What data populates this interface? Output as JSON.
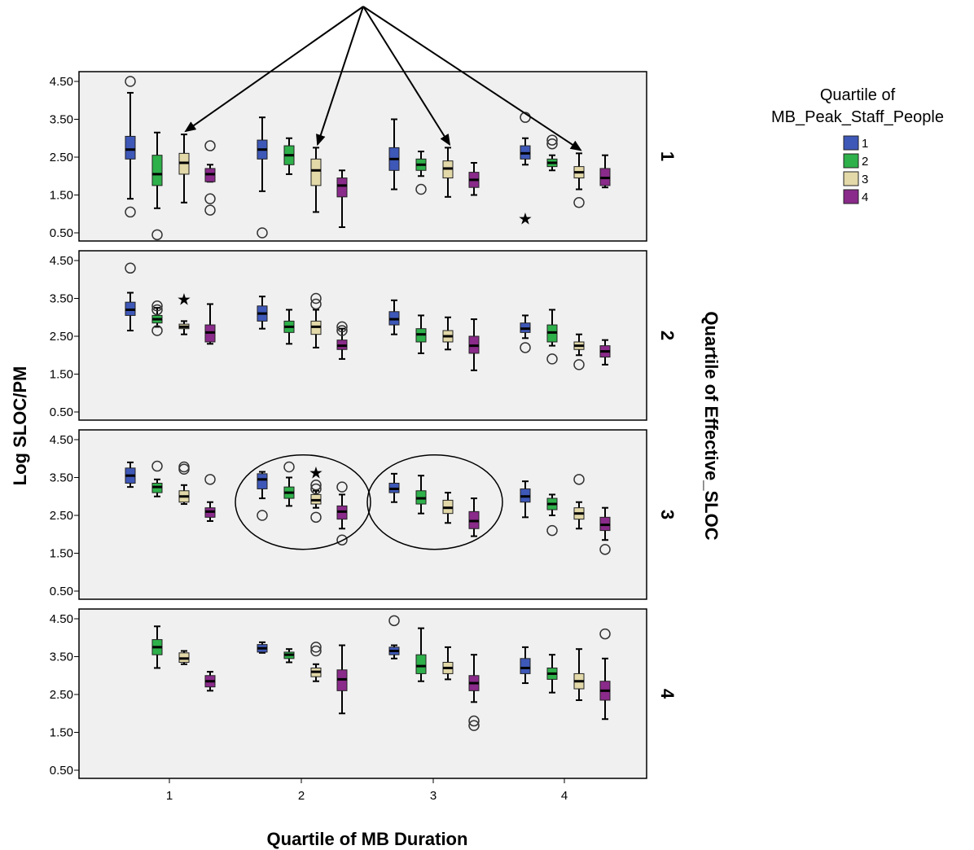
{
  "chart_data": {
    "type": "boxplot",
    "xlabel": "Quartile of MB Duration",
    "ylabel": "Log SLOC/PM",
    "panel_axis_label": "Quartile of Effective_SLOC",
    "legend_title_lines": [
      "Quartile of",
      "MB_Peak_Staff_People"
    ],
    "x_categories": [
      "1",
      "2",
      "3",
      "4"
    ],
    "y_ticks": [
      "4.50",
      "3.50",
      "2.50",
      "1.50",
      "0.50"
    ],
    "ylim": [
      0.5,
      4.5
    ],
    "legend_placement": "top-right",
    "series": [
      {
        "name": "1",
        "color": "#3e58b8"
      },
      {
        "name": "2",
        "color": "#2eb04a"
      },
      {
        "name": "3",
        "color": "#e2d8a8"
      },
      {
        "name": "4",
        "color": "#8a2a8a"
      }
    ],
    "panels": [
      {
        "label": "1",
        "boxes": [
          {
            "x": 1,
            "s": 1,
            "wlo": 1.4,
            "q1": 2.45,
            "med": 2.7,
            "q3": 3.05,
            "whi": 4.2,
            "out": [
              4.5,
              1.05
            ]
          },
          {
            "x": 1,
            "s": 2,
            "wlo": 1.15,
            "q1": 1.75,
            "med": 2.05,
            "q3": 2.55,
            "whi": 3.15,
            "out": [
              0.45
            ]
          },
          {
            "x": 1,
            "s": 3,
            "wlo": 1.3,
            "q1": 2.05,
            "med": 2.35,
            "q3": 2.6,
            "whi": 3.1,
            "out": []
          },
          {
            "x": 1,
            "s": 4,
            "wlo": 1.85,
            "q1": 1.85,
            "med": 2.05,
            "q3": 2.2,
            "whi": 2.3,
            "out": [
              2.8,
              1.4,
              1.1
            ]
          },
          {
            "x": 2,
            "s": 1,
            "wlo": 1.6,
            "q1": 2.45,
            "med": 2.7,
            "q3": 2.95,
            "whi": 3.55,
            "out": [
              0.5
            ]
          },
          {
            "x": 2,
            "s": 2,
            "wlo": 2.05,
            "q1": 2.3,
            "med": 2.55,
            "q3": 2.8,
            "whi": 3.0,
            "out": []
          },
          {
            "x": 2,
            "s": 3,
            "wlo": 1.05,
            "q1": 1.75,
            "med": 2.15,
            "q3": 2.45,
            "whi": 2.75,
            "out": []
          },
          {
            "x": 2,
            "s": 4,
            "wlo": 0.65,
            "q1": 1.45,
            "med": 1.75,
            "q3": 1.95,
            "whi": 2.15,
            "out": []
          },
          {
            "x": 3,
            "s": 1,
            "wlo": 1.65,
            "q1": 2.15,
            "med": 2.45,
            "q3": 2.75,
            "whi": 3.5,
            "out": []
          },
          {
            "x": 3,
            "s": 2,
            "wlo": 2.0,
            "q1": 2.15,
            "med": 2.3,
            "q3": 2.45,
            "whi": 2.65,
            "out": [
              1.65
            ]
          },
          {
            "x": 3,
            "s": 3,
            "wlo": 1.45,
            "q1": 1.95,
            "med": 2.2,
            "q3": 2.4,
            "whi": 2.75,
            "out": []
          },
          {
            "x": 3,
            "s": 4,
            "wlo": 1.5,
            "q1": 1.7,
            "med": 1.9,
            "q3": 2.1,
            "whi": 2.35,
            "out": []
          },
          {
            "x": 4,
            "s": 1,
            "wlo": 2.3,
            "q1": 2.45,
            "med": 2.6,
            "q3": 2.8,
            "whi": 3.0,
            "out": [
              3.55
            ],
            "ext": [
              0.9
            ]
          },
          {
            "x": 4,
            "s": 2,
            "wlo": 2.15,
            "q1": 2.25,
            "med": 2.35,
            "q3": 2.45,
            "whi": 2.55,
            "out": [
              2.95,
              2.85
            ]
          },
          {
            "x": 4,
            "s": 3,
            "wlo": 1.65,
            "q1": 1.95,
            "med": 2.1,
            "q3": 2.25,
            "whi": 2.6,
            "out": [
              1.3
            ]
          },
          {
            "x": 4,
            "s": 4,
            "wlo": 1.7,
            "q1": 1.75,
            "med": 1.95,
            "q3": 2.2,
            "whi": 2.55,
            "out": []
          }
        ]
      },
      {
        "label": "2",
        "boxes": [
          {
            "x": 1,
            "s": 1,
            "wlo": 2.65,
            "q1": 3.05,
            "med": 3.2,
            "q3": 3.4,
            "whi": 3.65,
            "out": [
              4.3
            ]
          },
          {
            "x": 1,
            "s": 2,
            "wlo": 2.75,
            "q1": 2.85,
            "med": 2.95,
            "q3": 3.05,
            "whi": 3.25,
            "out": [
              3.3,
              3.2,
              2.65
            ]
          },
          {
            "x": 1,
            "s": 3,
            "wlo": 2.55,
            "q1": 2.7,
            "med": 2.75,
            "q3": 2.82,
            "whi": 2.9,
            "out": [],
            "ext": [
              3.5
            ]
          },
          {
            "x": 1,
            "s": 4,
            "wlo": 2.3,
            "q1": 2.35,
            "med": 2.6,
            "q3": 2.8,
            "whi": 3.35,
            "out": []
          },
          {
            "x": 2,
            "s": 1,
            "wlo": 2.7,
            "q1": 2.9,
            "med": 3.1,
            "q3": 3.3,
            "whi": 3.55,
            "out": []
          },
          {
            "x": 2,
            "s": 2,
            "wlo": 2.3,
            "q1": 2.6,
            "med": 2.75,
            "q3": 2.9,
            "whi": 3.2,
            "out": []
          },
          {
            "x": 2,
            "s": 3,
            "wlo": 2.2,
            "q1": 2.55,
            "med": 2.75,
            "q3": 2.9,
            "whi": 3.2,
            "out": [
              3.5,
              3.35
            ]
          },
          {
            "x": 2,
            "s": 4,
            "wlo": 1.9,
            "q1": 2.15,
            "med": 2.25,
            "q3": 2.4,
            "whi": 2.7,
            "out": [
              2.75,
              2.65
            ]
          },
          {
            "x": 3,
            "s": 1,
            "wlo": 2.55,
            "q1": 2.8,
            "med": 2.95,
            "q3": 3.15,
            "whi": 3.45,
            "out": []
          },
          {
            "x": 3,
            "s": 2,
            "wlo": 2.05,
            "q1": 2.35,
            "med": 2.55,
            "q3": 2.7,
            "whi": 3.05,
            "out": []
          },
          {
            "x": 3,
            "s": 3,
            "wlo": 2.15,
            "q1": 2.35,
            "med": 2.5,
            "q3": 2.65,
            "whi": 3.0,
            "out": []
          },
          {
            "x": 3,
            "s": 4,
            "wlo": 1.6,
            "q1": 2.05,
            "med": 2.25,
            "q3": 2.5,
            "whi": 2.95,
            "out": []
          },
          {
            "x": 4,
            "s": 1,
            "wlo": 2.45,
            "q1": 2.6,
            "med": 2.7,
            "q3": 2.85,
            "whi": 3.05,
            "out": [
              2.2
            ]
          },
          {
            "x": 4,
            "s": 2,
            "wlo": 2.25,
            "q1": 2.35,
            "med": 2.6,
            "q3": 2.8,
            "whi": 3.2,
            "out": [
              1.9
            ]
          },
          {
            "x": 4,
            "s": 3,
            "wlo": 2.0,
            "q1": 2.15,
            "med": 2.25,
            "q3": 2.35,
            "whi": 2.55,
            "out": [
              1.75
            ]
          },
          {
            "x": 4,
            "s": 4,
            "wlo": 1.75,
            "q1": 1.95,
            "med": 2.1,
            "q3": 2.25,
            "whi": 2.4,
            "out": []
          }
        ]
      },
      {
        "label": "3",
        "boxes": [
          {
            "x": 1,
            "s": 1,
            "wlo": 3.25,
            "q1": 3.35,
            "med": 3.55,
            "q3": 3.75,
            "whi": 3.9,
            "out": []
          },
          {
            "x": 1,
            "s": 2,
            "wlo": 3.0,
            "q1": 3.1,
            "med": 3.25,
            "q3": 3.35,
            "whi": 3.45,
            "out": [
              3.8
            ]
          },
          {
            "x": 1,
            "s": 3,
            "wlo": 2.8,
            "q1": 2.85,
            "med": 3.0,
            "q3": 3.15,
            "whi": 3.3,
            "out": [
              3.78,
              3.72
            ]
          },
          {
            "x": 1,
            "s": 4,
            "wlo": 2.35,
            "q1": 2.45,
            "med": 2.6,
            "q3": 2.7,
            "whi": 2.85,
            "out": [
              3.45
            ]
          },
          {
            "x": 2,
            "s": 1,
            "wlo": 2.95,
            "q1": 3.2,
            "med": 3.45,
            "q3": 3.6,
            "whi": 3.65,
            "out": [
              2.5
            ]
          },
          {
            "x": 2,
            "s": 2,
            "wlo": 2.75,
            "q1": 2.95,
            "med": 3.1,
            "q3": 3.25,
            "whi": 3.5,
            "out": [
              3.78
            ]
          },
          {
            "x": 2,
            "s": 3,
            "wlo": 2.7,
            "q1": 2.8,
            "med": 2.9,
            "q3": 3.05,
            "whi": 3.15,
            "out": [
              3.3,
              3.2,
              2.45
            ],
            "ext": [
              3.65
            ]
          },
          {
            "x": 2,
            "s": 4,
            "wlo": 2.15,
            "q1": 2.4,
            "med": 2.6,
            "q3": 2.75,
            "whi": 3.05,
            "out": [
              3.25,
              1.85
            ]
          },
          {
            "x": 3,
            "s": 1,
            "wlo": 2.85,
            "q1": 3.1,
            "med": 3.2,
            "q3": 3.35,
            "whi": 3.6,
            "out": []
          },
          {
            "x": 3,
            "s": 2,
            "wlo": 2.55,
            "q1": 2.8,
            "med": 2.95,
            "q3": 3.15,
            "whi": 3.55,
            "out": []
          },
          {
            "x": 3,
            "s": 3,
            "wlo": 2.3,
            "q1": 2.55,
            "med": 2.7,
            "q3": 2.9,
            "whi": 3.1,
            "out": []
          },
          {
            "x": 3,
            "s": 4,
            "wlo": 1.95,
            "q1": 2.15,
            "med": 2.35,
            "q3": 2.6,
            "whi": 2.95,
            "out": []
          },
          {
            "x": 4,
            "s": 1,
            "wlo": 2.45,
            "q1": 2.85,
            "med": 3.0,
            "q3": 3.2,
            "whi": 3.4,
            "out": []
          },
          {
            "x": 4,
            "s": 2,
            "wlo": 2.5,
            "q1": 2.65,
            "med": 2.8,
            "q3": 2.95,
            "whi": 3.05,
            "out": [
              2.1
            ]
          },
          {
            "x": 4,
            "s": 3,
            "wlo": 2.15,
            "q1": 2.4,
            "med": 2.55,
            "q3": 2.7,
            "whi": 2.85,
            "out": [
              3.45
            ]
          },
          {
            "x": 4,
            "s": 4,
            "wlo": 1.85,
            "q1": 2.1,
            "med": 2.25,
            "q3": 2.45,
            "whi": 2.7,
            "out": [
              1.6
            ]
          }
        ]
      },
      {
        "label": "4",
        "boxes": [
          {
            "x": 1,
            "s": 2,
            "wlo": 3.2,
            "q1": 3.55,
            "med": 3.75,
            "q3": 3.95,
            "whi": 4.3,
            "out": []
          },
          {
            "x": 1,
            "s": 3,
            "wlo": 3.3,
            "q1": 3.35,
            "med": 3.45,
            "q3": 3.6,
            "whi": 3.65,
            "out": []
          },
          {
            "x": 1,
            "s": 4,
            "wlo": 2.6,
            "q1": 2.7,
            "med": 2.85,
            "q3": 3.0,
            "whi": 3.1,
            "out": []
          },
          {
            "x": 2,
            "s": 1,
            "wlo": 3.6,
            "q1": 3.62,
            "med": 3.72,
            "q3": 3.82,
            "whi": 3.88,
            "out": []
          },
          {
            "x": 2,
            "s": 2,
            "wlo": 3.35,
            "q1": 3.45,
            "med": 3.55,
            "q3": 3.62,
            "whi": 3.7,
            "out": []
          },
          {
            "x": 2,
            "s": 3,
            "wlo": 2.85,
            "q1": 2.97,
            "med": 3.1,
            "q3": 3.2,
            "whi": 3.3,
            "out": [
              3.75,
              3.65
            ]
          },
          {
            "x": 2,
            "s": 4,
            "wlo": 2.0,
            "q1": 2.6,
            "med": 2.9,
            "q3": 3.15,
            "whi": 3.8,
            "out": []
          },
          {
            "x": 3,
            "s": 1,
            "wlo": 3.45,
            "q1": 3.55,
            "med": 3.65,
            "q3": 3.75,
            "whi": 3.8,
            "out": [
              4.45
            ]
          },
          {
            "x": 3,
            "s": 2,
            "wlo": 2.85,
            "q1": 3.05,
            "med": 3.25,
            "q3": 3.55,
            "whi": 4.25,
            "out": []
          },
          {
            "x": 3,
            "s": 3,
            "wlo": 2.9,
            "q1": 3.05,
            "med": 3.2,
            "q3": 3.35,
            "whi": 3.75,
            "out": []
          },
          {
            "x": 3,
            "s": 4,
            "wlo": 2.3,
            "q1": 2.6,
            "med": 2.8,
            "q3": 3.0,
            "whi": 3.55,
            "out": [
              1.8,
              1.68
            ]
          },
          {
            "x": 4,
            "s": 1,
            "wlo": 2.8,
            "q1": 3.05,
            "med": 3.2,
            "q3": 3.45,
            "whi": 3.75,
            "out": []
          },
          {
            "x": 4,
            "s": 2,
            "wlo": 2.55,
            "q1": 2.9,
            "med": 3.05,
            "q3": 3.2,
            "whi": 3.55,
            "out": []
          },
          {
            "x": 4,
            "s": 3,
            "wlo": 2.35,
            "q1": 2.65,
            "med": 2.85,
            "q3": 3.05,
            "whi": 3.7,
            "out": []
          },
          {
            "x": 4,
            "s": 4,
            "wlo": 1.85,
            "q1": 2.35,
            "med": 2.6,
            "q3": 2.85,
            "whi": 3.45,
            "out": [
              4.1
            ]
          }
        ]
      }
    ],
    "annotations": {
      "arrow_targets": [
        {
          "panel": 0,
          "x": 1,
          "s": 3
        },
        {
          "panel": 0,
          "x": 2,
          "s": 3
        },
        {
          "panel": 0,
          "x": 3,
          "s": 3
        },
        {
          "panel": 0,
          "x": 4,
          "s": 3
        }
      ],
      "ellipse_groups": [
        {
          "panel": 2,
          "x": 2
        },
        {
          "panel": 2,
          "x": 3
        }
      ]
    }
  }
}
